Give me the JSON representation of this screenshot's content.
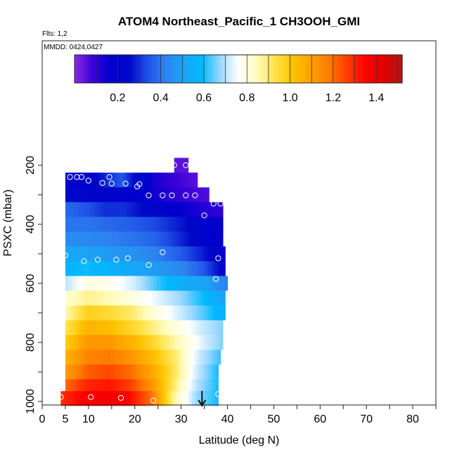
{
  "chart_data": {
    "type": "heatmap",
    "title": "ATOM4 Northeast_Pacific_1 CH3OOH_GMI",
    "subtitle_flights": "Flts: 1,2",
    "subtitle_dates": "MMDD: 0424,0427",
    "xlabel": "Latitude (deg N)",
    "ylabel": "PSXC (mbar)",
    "xlim": [
      0,
      85
    ],
    "ylim": [
      1000,
      0
    ],
    "x_ticks": [
      0,
      5,
      10,
      20,
      30,
      40,
      50,
      60,
      70,
      80
    ],
    "y_ticks": [
      200,
      400,
      600,
      800,
      1000
    ],
    "colorbar": {
      "range": [
        0,
        1.52
      ],
      "ticks": [
        0.2,
        0.4,
        0.6,
        0.8,
        1.0,
        1.2,
        1.4
      ],
      "tick_labels": [
        "0.2",
        "0.4",
        "0.6",
        "0.8",
        "1.0",
        "1.2",
        "1.4"
      ],
      "colors": [
        "#8a2be2",
        "#3a00d8",
        "#0000cd",
        "#0008c8",
        "#1f4fe6",
        "#2e82f0",
        "#1aa5f5",
        "#00b8ff",
        "#9ad8ff",
        "#ffffff",
        "#fffcc0",
        "#ffe34a",
        "#ffc200",
        "#ffa000",
        "#ff7a00",
        "#ff3a00",
        "#ff0000",
        "#e00000",
        "#b01818"
      ]
    },
    "rows": [
      {
        "p": 200,
        "lat_min": 28.5,
        "lat_max": 31.5,
        "values": [
          0.05,
          0.05
        ]
      },
      {
        "p": 250,
        "lat_min": 5,
        "lat_max": 33.5,
        "values": [
          0.2,
          0.18,
          0.28,
          0.35,
          0.2,
          0.12,
          0.08,
          0.05
        ]
      },
      {
        "p": 300,
        "lat_min": 5,
        "lat_max": 36,
        "values": [
          0.25,
          0.22,
          0.2,
          0.2,
          0.16,
          0.12,
          0.08,
          0.06
        ]
      },
      {
        "p": 350,
        "lat_min": 5,
        "lat_max": 39,
        "values": [
          0.38,
          0.35,
          0.3,
          0.3,
          0.25,
          0.2,
          0.16,
          0.12,
          0.1
        ]
      },
      {
        "p": 400,
        "lat_min": 5,
        "lat_max": 39,
        "values": [
          0.4,
          0.4,
          0.38,
          0.36,
          0.33,
          0.28,
          0.22,
          0.18
        ]
      },
      {
        "p": 450,
        "lat_min": 5,
        "lat_max": 39,
        "values": [
          0.45,
          0.44,
          0.42,
          0.4,
          0.37,
          0.3,
          0.22,
          0.16
        ]
      },
      {
        "p": 500,
        "lat_min": 5,
        "lat_max": 39.5,
        "values": [
          0.52,
          0.5,
          0.48,
          0.46,
          0.42,
          0.36,
          0.28,
          0.18
        ]
      },
      {
        "p": 550,
        "lat_min": 5,
        "lat_max": 39.5,
        "values": [
          0.58,
          0.6,
          0.56,
          0.52,
          0.48,
          0.44,
          0.36,
          0.22
        ]
      },
      {
        "p": 600,
        "lat_min": 5,
        "lat_max": 40,
        "values": [
          0.7,
          0.8,
          0.78,
          0.72,
          0.62,
          0.55,
          0.5,
          0.42
        ]
      },
      {
        "p": 650,
        "lat_min": 5,
        "lat_max": 39.5,
        "values": [
          0.82,
          0.88,
          0.85,
          0.8,
          0.74,
          0.68,
          0.6,
          0.5
        ]
      },
      {
        "p": 700,
        "lat_min": 5,
        "lat_max": 39.5,
        "values": [
          0.85,
          0.98,
          0.95,
          0.9,
          0.8,
          0.72,
          0.64,
          0.55
        ]
      },
      {
        "p": 750,
        "lat_min": 5,
        "lat_max": 39,
        "values": [
          0.92,
          1.05,
          1.02,
          0.96,
          0.88,
          0.8,
          0.72,
          0.66
        ]
      },
      {
        "p": 800,
        "lat_min": 5,
        "lat_max": 39,
        "values": [
          0.98,
          1.12,
          1.12,
          1.05,
          0.95,
          0.85,
          0.74,
          0.66
        ]
      },
      {
        "p": 850,
        "lat_min": 5,
        "lat_max": 38.5,
        "values": [
          1.05,
          1.16,
          1.18,
          1.12,
          1.02,
          0.9,
          0.72,
          0.62
        ]
      },
      {
        "p": 900,
        "lat_min": 5,
        "lat_max": 38,
        "values": [
          1.1,
          1.22,
          1.25,
          1.2,
          1.08,
          0.92,
          0.72,
          0.6
        ]
      },
      {
        "p": 950,
        "lat_min": 5,
        "lat_max": 38,
        "values": [
          1.2,
          1.3,
          1.32,
          1.26,
          1.12,
          0.9,
          0.7,
          0.6
        ]
      },
      {
        "p": 990,
        "lat_min": 4,
        "lat_max": 38,
        "values": [
          1.28,
          1.36,
          1.38,
          1.35,
          1.2,
          0.88,
          0.68,
          0.6
        ]
      }
    ],
    "points": [
      [
        28.5,
        200
      ],
      [
        31,
        200
      ],
      [
        6,
        240
      ],
      [
        7.5,
        240
      ],
      [
        8.5,
        240
      ],
      [
        14.5,
        240
      ],
      [
        10,
        252
      ],
      [
        13,
        260
      ],
      [
        15,
        262
      ],
      [
        18,
        262
      ],
      [
        20.5,
        272
      ],
      [
        21,
        264
      ],
      [
        23,
        302
      ],
      [
        26,
        302
      ],
      [
        28,
        302
      ],
      [
        31,
        302
      ],
      [
        33,
        302
      ],
      [
        37,
        330
      ],
      [
        38.5,
        330
      ],
      [
        35,
        370
      ],
      [
        5,
        505
      ],
      [
        26,
        495
      ],
      [
        4,
        525
      ],
      [
        9,
        525
      ],
      [
        12,
        520
      ],
      [
        16,
        520
      ],
      [
        18.5,
        515
      ],
      [
        23,
        538
      ],
      [
        38,
        515
      ],
      [
        37.5,
        585
      ],
      [
        38,
        975
      ],
      [
        4,
        985
      ],
      [
        10.5,
        985
      ],
      [
        17,
        988
      ],
      [
        24,
        997
      ]
    ],
    "arrow_latitude": 34.5
  }
}
